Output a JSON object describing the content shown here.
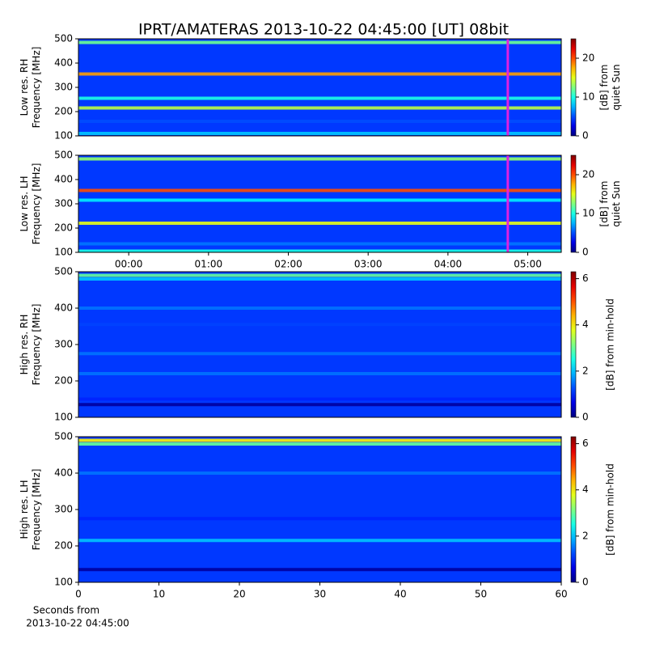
{
  "title": "IPRT/AMATERAS 2013-10-22 04:45:00 [UT]   08bit",
  "chart_data": [
    {
      "type": "spectrogram",
      "ylabel": [
        "Low res. RH",
        "Frequency [MHz]"
      ],
      "xlim": [
        -0.63,
        5.42
      ],
      "ylim": [
        100,
        500
      ],
      "yticks": [
        100,
        200,
        300,
        400,
        500
      ],
      "y": [
        110,
        160,
        215,
        255,
        355,
        485
      ],
      "values": [
        8,
        5,
        14,
        10,
        18,
        12
      ],
      "marker_x": 4.75,
      "marker_color": "#e020e0",
      "clim": [
        0,
        25
      ],
      "cticks": [
        0,
        10,
        20
      ],
      "clabel": [
        "[dB] from",
        "quiet Sun"
      ]
    },
    {
      "type": "spectrogram",
      "ylabel": [
        "Low res. LH",
        "Frequency [MHz]"
      ],
      "xlim": [
        -0.63,
        5.42
      ],
      "ylim": [
        100,
        500
      ],
      "yticks": [
        100,
        200,
        300,
        400,
        500
      ],
      "xticks": [
        {
          "value": 0,
          "label": "00:00"
        },
        {
          "value": 1,
          "label": "01:00"
        },
        {
          "value": 2,
          "label": "02:00"
        },
        {
          "value": 3,
          "label": "03:00"
        },
        {
          "value": 4,
          "label": "04:00"
        },
        {
          "value": 5,
          "label": "05:00"
        }
      ],
      "y": [
        105,
        135,
        220,
        315,
        355,
        485
      ],
      "values": [
        10,
        6,
        15,
        9,
        20,
        13
      ],
      "marker_x": 4.75,
      "marker_color": "#e020e0",
      "clim": [
        0,
        25
      ],
      "cticks": [
        0,
        10,
        20
      ],
      "clabel": [
        "[dB] from",
        "quiet Sun"
      ]
    },
    {
      "type": "spectrogram",
      "ylabel": [
        "High res. RH",
        "Frequency [MHz]"
      ],
      "xlim": [
        0,
        60
      ],
      "ylim": [
        100,
        500
      ],
      "yticks": [
        100,
        200,
        300,
        400,
        500
      ],
      "y": [
        490,
        480,
        400,
        355,
        275,
        220,
        150,
        135
      ],
      "values": [
        3,
        2,
        1.5,
        1.2,
        1.5,
        1.5,
        1,
        0.2
      ],
      "clim": [
        0,
        6.3
      ],
      "cticks": [
        0,
        2,
        4,
        6
      ],
      "clabel": [
        "[dB] from min-hold"
      ]
    },
    {
      "type": "spectrogram",
      "ylabel": [
        "High res. LH",
        "Frequency [MHz]"
      ],
      "xlim": [
        0,
        60
      ],
      "ylim": [
        100,
        500
      ],
      "yticks": [
        100,
        200,
        300,
        400,
        500
      ],
      "xticks": [
        0,
        10,
        20,
        30,
        40,
        50,
        60
      ],
      "xlabel": [
        "Seconds from",
        "2013-10-22 04:45:00"
      ],
      "y": [
        490,
        480,
        400,
        275,
        215,
        135
      ],
      "values": [
        4,
        3,
        1.5,
        1,
        2,
        0.2
      ],
      "clim": [
        0,
        6.3
      ],
      "cticks": [
        0,
        2,
        4,
        6
      ],
      "clabel": [
        "[dB] from min-hold"
      ]
    }
  ]
}
